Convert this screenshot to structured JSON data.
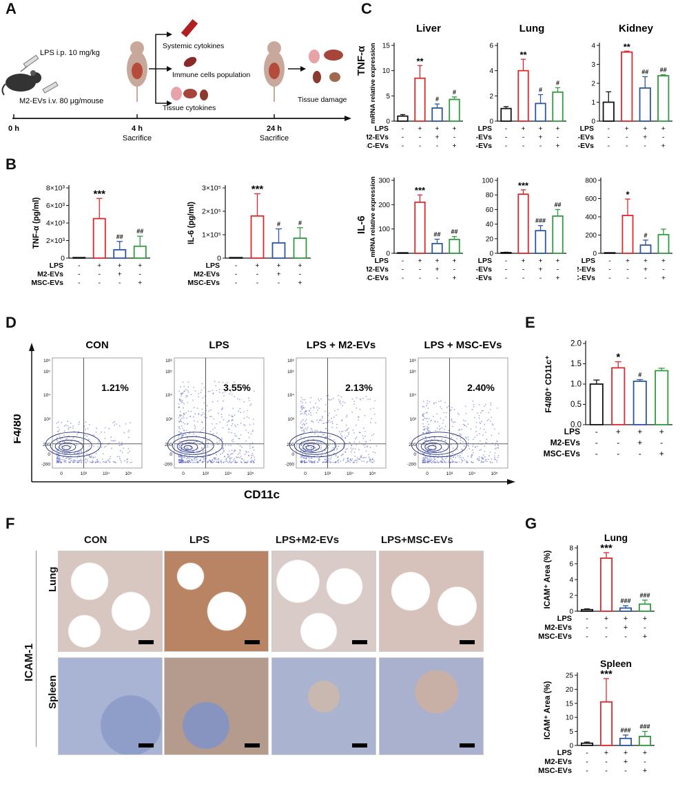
{
  "panels": {
    "A": "A",
    "B": "B",
    "C": "C",
    "D": "D",
    "E": "E",
    "F": "F",
    "G": "G"
  },
  "panelA": {
    "lps_line": "LPS i.p. 10 mg/kg",
    "ev_line": "M2-EVs i.v. 80 μg/mouse",
    "outcomes4h": [
      "Systemic cytokines",
      "Immune cells population",
      "Tissue cytokines"
    ],
    "outcome24h": "Tissue damage",
    "times": [
      "0 h",
      "4 h",
      "24 h"
    ],
    "sacrifice": "Sacrifice"
  },
  "condition_rows": {
    "labels": [
      "LPS",
      "M2-EVs",
      "MSC-EVs"
    ],
    "signs": [
      [
        "-",
        "+",
        "+",
        "+"
      ],
      [
        "-",
        "-",
        "+",
        "-"
      ],
      [
        "-",
        "-",
        "-",
        "+"
      ]
    ]
  },
  "colors": {
    "con": "#111111",
    "lps": "#e0262b",
    "m2": "#2a56a0",
    "msc": "#2f9a3e"
  },
  "chart_data": [
    {
      "id": "B1",
      "type": "bar",
      "ylabel": "TNF-α (pg/ml)",
      "ytick_labels": [
        "0",
        "2×10³",
        "4×10³",
        "6×10³",
        "8×10³"
      ],
      "ylim": [
        0,
        8000
      ],
      "values": [
        0,
        4500,
        950,
        1350
      ],
      "errors": [
        0,
        2300,
        950,
        1150
      ],
      "annotations": [
        "",
        "***",
        "##",
        "##"
      ]
    },
    {
      "id": "B2",
      "type": "bar",
      "ylabel": "IL-6 (pg/ml)",
      "ytick_labels": [
        "0",
        "1×10⁵",
        "2×10⁵",
        "3×10⁵"
      ],
      "ylim": [
        0,
        300000
      ],
      "values": [
        0,
        180000,
        65000,
        85000
      ],
      "errors": [
        0,
        95000,
        60000,
        45000
      ],
      "annotations": [
        "",
        "***",
        "#",
        "#"
      ]
    },
    {
      "id": "C1",
      "type": "bar",
      "title": "Liver",
      "ylim": [
        0,
        15
      ],
      "ticks": [
        0,
        5,
        10,
        15
      ],
      "values": [
        1,
        8.5,
        2.6,
        4.3
      ],
      "errors": [
        0.3,
        2.5,
        0.8,
        0.5
      ],
      "annotations": [
        "",
        "**",
        "#",
        "#"
      ]
    },
    {
      "id": "C2",
      "type": "bar",
      "title": "Lung",
      "ylim": [
        0,
        6
      ],
      "ticks": [
        0,
        2,
        4,
        6
      ],
      "values": [
        1,
        4,
        1.4,
        2.3
      ],
      "errors": [
        0.15,
        0.9,
        0.7,
        0.35
      ],
      "annotations": [
        "",
        "**",
        "#",
        "#"
      ]
    },
    {
      "id": "C3",
      "type": "bar",
      "title": "Kidney",
      "ylim": [
        0,
        4
      ],
      "ticks": [
        0,
        1,
        2,
        3,
        4
      ],
      "values": [
        1,
        3.65,
        1.75,
        2.4
      ],
      "errors": [
        0.55,
        0.05,
        0.6,
        0.05
      ],
      "annotations": [
        "",
        "**",
        "##",
        "##"
      ]
    },
    {
      "id": "C4",
      "type": "bar",
      "ylim": [
        0,
        300
      ],
      "ticks": [
        0,
        100,
        200,
        300
      ],
      "values": [
        0,
        210,
        40,
        57
      ],
      "errors": [
        0,
        30,
        18,
        12
      ],
      "annotations": [
        "",
        "***",
        "##",
        "##"
      ]
    },
    {
      "id": "C5",
      "type": "bar",
      "ylim": [
        0,
        100
      ],
      "ticks": [
        0,
        20,
        40,
        60,
        80,
        100
      ],
      "values": [
        1,
        81,
        31,
        51
      ],
      "errors": [
        0.5,
        6,
        7,
        9
      ],
      "annotations": [
        "",
        "***",
        "###",
        "##"
      ]
    },
    {
      "id": "C6",
      "type": "bar",
      "ylim": [
        0,
        800
      ],
      "ticks": [
        0,
        200,
        400,
        600,
        800
      ],
      "values": [
        0,
        415,
        90,
        205
      ],
      "errors": [
        0,
        180,
        55,
        60
      ],
      "annotations": [
        "",
        "*",
        "#",
        ""
      ]
    },
    {
      "id": "E",
      "type": "bar",
      "ylim": [
        0,
        2
      ],
      "ticks": [
        "0.0",
        "0.5",
        "1.0",
        "1.5",
        "2.0"
      ],
      "values": [
        1,
        1.4,
        1.07,
        1.33
      ],
      "errors": [
        0.1,
        0.15,
        0.04,
        0.06
      ],
      "annotations": [
        "",
        "*",
        "#",
        ""
      ]
    },
    {
      "id": "G1",
      "type": "bar",
      "title": "Lung",
      "ylabel": "ICAM⁺ Area (%)",
      "ylim": [
        0,
        8
      ],
      "ticks": [
        0,
        2,
        4,
        6,
        8
      ],
      "values": [
        0.2,
        6.7,
        0.4,
        0.9
      ],
      "errors": [
        0.1,
        0.7,
        0.3,
        0.5
      ],
      "annotations": [
        "",
        "***",
        "###",
        "###"
      ]
    },
    {
      "id": "G2",
      "type": "bar",
      "title": "Spleen",
      "ylabel": "ICAM⁺ Area (%)",
      "ylim": [
        0,
        25
      ],
      "ticks": [
        0,
        5,
        10,
        15,
        20,
        25
      ],
      "values": [
        0.8,
        15.5,
        2.5,
        3.2
      ],
      "errors": [
        0.4,
        8.3,
        1.2,
        1.8
      ],
      "annotations": [
        "",
        "***",
        "###",
        "###"
      ]
    }
  ],
  "panelC": {
    "row_labels": [
      "TNF-α",
      "IL-6"
    ],
    "ylabel": "mRNA relative expression"
  },
  "panelD": {
    "titles": [
      "CON",
      "LPS",
      "LPS + M2-EVs",
      "LPS + MSC-EVs"
    ],
    "percents": [
      "1.21%",
      "3.55%",
      "2.13%",
      "2.40%"
    ],
    "yaxis": "F4/80",
    "xaxis": "CD11c",
    "yticks": [
      "10⁶",
      "10⁵",
      "10⁴",
      "10³",
      "200",
      "0",
      "-200"
    ],
    "xticks": [
      "0",
      "10³",
      "10⁴",
      "10⁵"
    ]
  },
  "panelE": {
    "ylabel": "F4/80⁺ CD11c⁺"
  },
  "panelF": {
    "titles": [
      "CON",
      "LPS",
      "LPS+M2-EVs",
      "LPS+MSC-EVs"
    ],
    "marker": "ICAM-1",
    "rows": [
      "Lung",
      "Spleen"
    ]
  }
}
